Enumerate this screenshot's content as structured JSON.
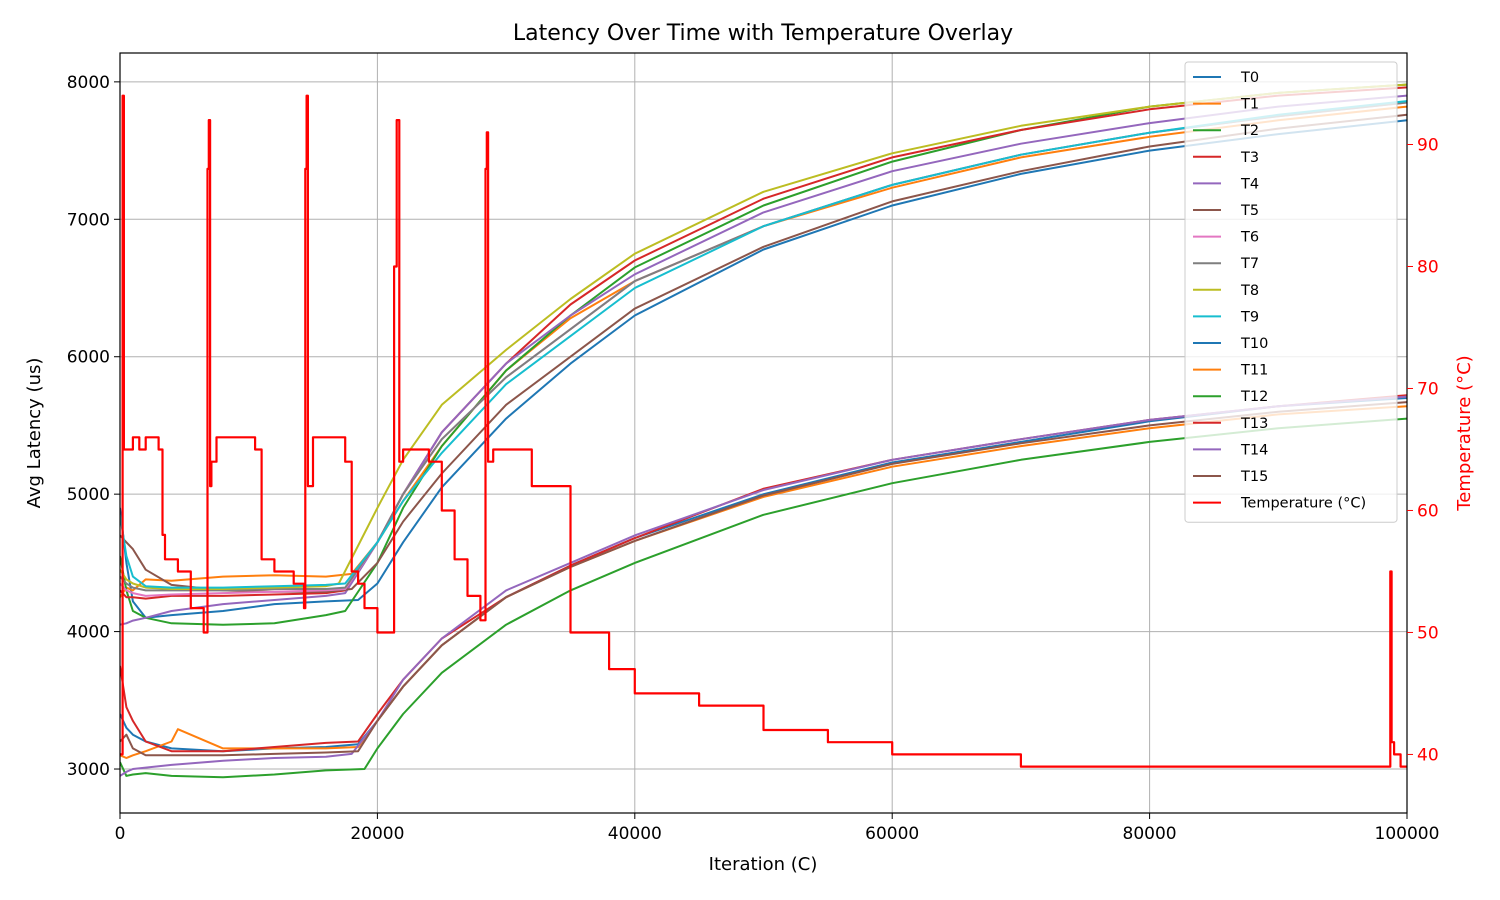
{
  "chart_data": {
    "type": "line",
    "title": "Latency Over Time with Temperature Overlay",
    "xlabel": "Iteration (C)",
    "ylabel": "Avg Latency (us)",
    "y2label": "Temperature (°C)",
    "xlim": [
      0,
      100000
    ],
    "ylim": [
      2680,
      8210
    ],
    "y2lim": [
      35.2,
      97.5
    ],
    "xticks": [
      0,
      20000,
      40000,
      60000,
      80000,
      100000
    ],
    "yticks": [
      3000,
      4000,
      5000,
      6000,
      7000,
      8000
    ],
    "y2ticks": [
      40,
      50,
      60,
      70,
      80,
      90
    ],
    "grid": true,
    "legend_position": "top-right",
    "series": [
      {
        "name": "T0",
        "axis": "left",
        "color": "#1f77b4",
        "x": [
          0,
          500,
          1000,
          2000,
          4000,
          8000,
          12000,
          16000,
          18500,
          20000,
          22000,
          25000,
          30000,
          35000,
          40000,
          50000,
          60000,
          70000,
          80000,
          90000,
          100000
        ],
        "y": [
          4900,
          4500,
          4220,
          4100,
          4120,
          4150,
          4200,
          4220,
          4230,
          4350,
          4650,
          5050,
          5550,
          5950,
          6300,
          6780,
          7100,
          7330,
          7500,
          7620,
          7720
        ]
      },
      {
        "name": "T1",
        "axis": "left",
        "color": "#ff7f0e",
        "x": [
          0,
          500,
          1000,
          2000,
          4000,
          8000,
          12000,
          16000,
          18000,
          20000,
          22000,
          25000,
          30000,
          35000,
          40000,
          50000,
          60000,
          70000,
          80000,
          90000,
          100000
        ],
        "y": [
          4250,
          4320,
          4300,
          4380,
          4370,
          4400,
          4410,
          4400,
          4420,
          4650,
          4950,
          5350,
          5900,
          6280,
          6550,
          6950,
          7230,
          7450,
          7600,
          7720,
          7820
        ]
      },
      {
        "name": "T2",
        "axis": "left",
        "color": "#2ca02c",
        "x": [
          0,
          500,
          1000,
          2000,
          4000,
          8000,
          12000,
          16000,
          17500,
          20000,
          22000,
          25000,
          30000,
          35000,
          40000,
          50000,
          60000,
          70000,
          80000,
          90000,
          100000
        ],
        "y": [
          4550,
          4300,
          4150,
          4100,
          4060,
          4050,
          4060,
          4120,
          4150,
          4500,
          4900,
          5350,
          5900,
          6300,
          6650,
          7100,
          7420,
          7650,
          7820,
          7920,
          7980
        ]
      },
      {
        "name": "T3",
        "axis": "left",
        "color": "#d62728",
        "x": [
          0,
          500,
          1000,
          2000,
          4000,
          8000,
          12000,
          16000,
          17500,
          20000,
          22000,
          25000,
          30000,
          35000,
          40000,
          50000,
          60000,
          70000,
          80000,
          90000,
          100000
        ],
        "y": [
          4300,
          4250,
          4250,
          4240,
          4260,
          4260,
          4270,
          4280,
          4300,
          4650,
          5000,
          5450,
          5950,
          6380,
          6700,
          7150,
          7450,
          7650,
          7800,
          7900,
          7960
        ]
      },
      {
        "name": "T4",
        "axis": "left",
        "color": "#9467bd",
        "x": [
          0,
          500,
          1000,
          2000,
          4000,
          8000,
          12000,
          16000,
          17500,
          20000,
          22000,
          25000,
          30000,
          35000,
          40000,
          50000,
          60000,
          70000,
          80000,
          90000,
          100000
        ],
        "y": [
          4050,
          4060,
          4080,
          4100,
          4150,
          4200,
          4230,
          4260,
          4280,
          4650,
          5000,
          5450,
          5950,
          6300,
          6600,
          7050,
          7350,
          7550,
          7700,
          7820,
          7900
        ]
      },
      {
        "name": "T5",
        "axis": "left",
        "color": "#8c564b",
        "x": [
          0,
          500,
          1000,
          2000,
          4000,
          8000,
          12000,
          16000,
          18000,
          20000,
          22000,
          25000,
          30000,
          35000,
          40000,
          50000,
          60000,
          70000,
          80000,
          90000,
          100000
        ],
        "y": [
          4700,
          4650,
          4600,
          4450,
          4340,
          4300,
          4290,
          4290,
          4310,
          4500,
          4800,
          5150,
          5650,
          6000,
          6350,
          6800,
          7130,
          7350,
          7530,
          7660,
          7760
        ]
      },
      {
        "name": "T6",
        "axis": "left",
        "color": "#e377c2",
        "x": [
          0,
          500,
          1000,
          2000,
          4000,
          8000,
          12000,
          16000,
          17500,
          20000,
          22000,
          25000,
          30000,
          35000,
          40000,
          50000,
          60000,
          70000,
          80000,
          90000,
          100000
        ],
        "y": [
          4350,
          4300,
          4280,
          4260,
          4270,
          4280,
          4290,
          4300,
          4310,
          4650,
          5000,
          5400,
          5850,
          6200,
          6550,
          6950,
          7250,
          7470,
          7630,
          7750,
          7850
        ]
      },
      {
        "name": "T7",
        "axis": "left",
        "color": "#7f7f7f",
        "x": [
          0,
          500,
          1000,
          2000,
          4000,
          8000,
          12000,
          16000,
          17500,
          20000,
          22000,
          25000,
          30000,
          35000,
          40000,
          50000,
          60000,
          70000,
          80000,
          90000,
          100000
        ],
        "y": [
          4400,
          4350,
          4320,
          4300,
          4300,
          4300,
          4310,
          4310,
          4320,
          4650,
          5000,
          5400,
          5850,
          6200,
          6550,
          6950,
          7250,
          7470,
          7630,
          7750,
          7850
        ]
      },
      {
        "name": "T8",
        "axis": "left",
        "color": "#bcbd22",
        "x": [
          0,
          500,
          1000,
          2000,
          4000,
          8000,
          12000,
          16000,
          17000,
          20000,
          22000,
          25000,
          30000,
          35000,
          40000,
          50000,
          60000,
          70000,
          80000,
          90000,
          100000
        ],
        "y": [
          4450,
          4380,
          4350,
          4320,
          4310,
          4310,
          4320,
          4330,
          4350,
          4900,
          5250,
          5650,
          6050,
          6420,
          6750,
          7200,
          7480,
          7680,
          7820,
          7920,
          7980
        ]
      },
      {
        "name": "T9",
        "axis": "left",
        "color": "#17becf",
        "x": [
          0,
          500,
          1000,
          2000,
          4000,
          8000,
          12000,
          16000,
          17500,
          20000,
          22000,
          25000,
          30000,
          35000,
          40000,
          50000,
          60000,
          70000,
          80000,
          90000,
          100000
        ],
        "y": [
          4850,
          4550,
          4400,
          4330,
          4320,
          4320,
          4330,
          4340,
          4350,
          4650,
          4950,
          5300,
          5800,
          6150,
          6500,
          6950,
          7250,
          7470,
          7630,
          7760,
          7860
        ]
      },
      {
        "name": "T10",
        "axis": "left",
        "color": "#1f77b4",
        "x": [
          0,
          500,
          1000,
          2000,
          4000,
          8000,
          12000,
          16000,
          18500,
          20000,
          22000,
          25000,
          30000,
          35000,
          40000,
          50000,
          60000,
          70000,
          80000,
          90000,
          100000
        ],
        "y": [
          3400,
          3300,
          3250,
          3200,
          3150,
          3130,
          3150,
          3160,
          3180,
          3350,
          3600,
          3900,
          4250,
          4480,
          4680,
          5000,
          5230,
          5380,
          5530,
          5640,
          5700
        ]
      },
      {
        "name": "T11",
        "axis": "left",
        "color": "#ff7f0e",
        "x": [
          0,
          500,
          1000,
          2000,
          4000,
          4500,
          8000,
          12000,
          16000,
          18500,
          20000,
          22000,
          25000,
          30000,
          35000,
          40000,
          50000,
          60000,
          70000,
          80000,
          90000,
          100000
        ],
        "y": [
          3100,
          3080,
          3100,
          3130,
          3200,
          3290,
          3150,
          3150,
          3150,
          3160,
          3350,
          3600,
          3900,
          4250,
          4470,
          4660,
          4980,
          5200,
          5350,
          5480,
          5580,
          5640
        ]
      },
      {
        "name": "T12",
        "axis": "left",
        "color": "#2ca02c",
        "x": [
          0,
          500,
          1000,
          2000,
          4000,
          8000,
          12000,
          16000,
          19000,
          20000,
          22000,
          25000,
          30000,
          35000,
          40000,
          50000,
          60000,
          70000,
          80000,
          90000,
          100000
        ],
        "y": [
          3050,
          2950,
          2960,
          2970,
          2950,
          2940,
          2960,
          2990,
          3000,
          3150,
          3400,
          3700,
          4050,
          4300,
          4500,
          4850,
          5080,
          5250,
          5380,
          5480,
          5550
        ]
      },
      {
        "name": "T13",
        "axis": "left",
        "color": "#d62728",
        "x": [
          0,
          500,
          1000,
          2000,
          4000,
          8000,
          12000,
          16000,
          18500,
          20000,
          22000,
          25000,
          30000,
          35000,
          40000,
          50000,
          60000,
          70000,
          80000,
          90000,
          100000
        ],
        "y": [
          3750,
          3450,
          3350,
          3200,
          3130,
          3130,
          3160,
          3190,
          3200,
          3400,
          3650,
          3950,
          4250,
          4480,
          4680,
          5040,
          5250,
          5400,
          5540,
          5640,
          5720
        ]
      },
      {
        "name": "T14",
        "axis": "left",
        "color": "#9467bd",
        "x": [
          0,
          500,
          1000,
          2000,
          4000,
          8000,
          12000,
          16000,
          18000,
          20000,
          22000,
          25000,
          30000,
          35000,
          40000,
          50000,
          60000,
          70000,
          80000,
          90000,
          100000
        ],
        "y": [
          2950,
          2980,
          3000,
          3010,
          3030,
          3060,
          3080,
          3090,
          3110,
          3350,
          3650,
          3950,
          4300,
          4500,
          4700,
          5030,
          5250,
          5400,
          5540,
          5640,
          5710
        ]
      },
      {
        "name": "T15",
        "axis": "left",
        "color": "#8c564b",
        "x": [
          0,
          500,
          1000,
          2000,
          4000,
          8000,
          12000,
          16000,
          18500,
          20000,
          22000,
          25000,
          30000,
          35000,
          40000,
          50000,
          60000,
          70000,
          80000,
          90000,
          100000
        ],
        "y": [
          3200,
          3250,
          3150,
          3100,
          3100,
          3100,
          3110,
          3120,
          3130,
          3350,
          3600,
          3900,
          4250,
          4470,
          4660,
          4990,
          5220,
          5370,
          5500,
          5600,
          5670
        ]
      },
      {
        "name": "Temperature (°C)",
        "axis": "right",
        "color": "#ff0000",
        "x": [
          0,
          200,
          300,
          400,
          1000,
          1500,
          2000,
          3000,
          3300,
          3500,
          4500,
          5500,
          6500,
          6800,
          6900,
          7000,
          7100,
          7500,
          9000,
          10500,
          11000,
          12000,
          13500,
          14300,
          14400,
          14500,
          14600,
          15000,
          16500,
          17500,
          18000,
          18500,
          19000,
          20000,
          21000,
          21300,
          21500,
          21700,
          22000,
          23000,
          24000,
          25000,
          26000,
          27000,
          28000,
          28400,
          28500,
          28600,
          29000,
          31000,
          32000,
          35000,
          38000,
          40000,
          45000,
          50000,
          55000,
          60000,
          65000,
          70000,
          75000,
          80000,
          85000,
          90000,
          95000,
          98500,
          98700,
          98800,
          99000,
          99500,
          100000
        ],
        "y": [
          40,
          94,
          65,
          65,
          66,
          65,
          66,
          65,
          58,
          56,
          55,
          52,
          50,
          88,
          92,
          62,
          64,
          66,
          66,
          65,
          56,
          55,
          54,
          52,
          88,
          94,
          62,
          66,
          66,
          64,
          55,
          54,
          52,
          50,
          50,
          80,
          92,
          64,
          65,
          65,
          64,
          60,
          56,
          53,
          51,
          88,
          91,
          64,
          65,
          65,
          62,
          50,
          47,
          45,
          44,
          42,
          41,
          40,
          40,
          39,
          39,
          39,
          39,
          39,
          39,
          39,
          55,
          41,
          40,
          39,
          39
        ]
      }
    ]
  }
}
